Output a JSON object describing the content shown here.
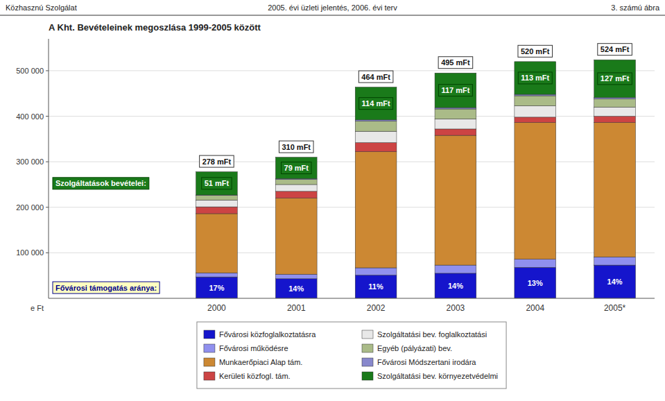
{
  "chart_data": {
    "type": "bar",
    "stacked": true,
    "title": "A Kht. Bevételeinek megoszlása 1999-2005 között",
    "header": {
      "left": "Közhasznú Szolgálat",
      "center": "2005. évi üzleti jelentés, 2006. évi terv",
      "right": "3. számú ábra"
    },
    "y_label": "e Ft",
    "categories": [
      "2000",
      "2001",
      "2002",
      "2003",
      "2004",
      "2005*"
    ],
    "series": [
      {
        "name": "Fővárosi közfoglalkoztatásra",
        "color": "#1515CC",
        "values": [
          47000,
          43000,
          51000,
          55000,
          68000,
          73000
        ]
      },
      {
        "name": "Fővárosi működésre",
        "color": "#9090EE",
        "values": [
          9000,
          10000,
          16000,
          18000,
          18000,
          18000
        ]
      },
      {
        "name": "Munkaerőpiaci Alap tám.",
        "color": "#CC8833",
        "values": [
          130000,
          167000,
          255000,
          285000,
          300000,
          295000
        ]
      },
      {
        "name": "Kerületi közfogl. tám.",
        "color": "#CC4444",
        "values": [
          15000,
          15000,
          20000,
          14000,
          12000,
          14000
        ]
      },
      {
        "name": "Szolgáltatási bev. foglalkoztatási",
        "color": "#E8E8E8",
        "values": [
          15000,
          15000,
          25000,
          22000,
          25000,
          20000
        ]
      },
      {
        "name": "Egyéb (pályázati) bev.",
        "color": "#AABB88",
        "values": [
          10000,
          11000,
          22000,
          22000,
          22000,
          18000
        ]
      },
      {
        "name": "Fővárosi Módszertani irodára",
        "color": "#8888CC",
        "values": [
          1000,
          2000,
          3000,
          3000,
          3000,
          3000
        ]
      },
      {
        "name": "Szolgáltatási bev. környezetvédelmi",
        "color": "#1A7A1A",
        "values": [
          51000,
          47000,
          72000,
          76000,
          72000,
          83000
        ]
      }
    ],
    "totals": {
      "values": [
        278000,
        310000,
        464000,
        495000,
        520000,
        524000
      ],
      "value_labels": [
        "278 mFt",
        "310 mFt",
        "464 mFt",
        "495 mFt",
        "520 mFt",
        "524 mFt"
      ]
    },
    "service_revenue": {
      "name": "Szolgáltatások bevételei:",
      "values": [
        51000,
        79000,
        114000,
        117000,
        113000,
        127000
      ],
      "value_labels": [
        "51 mFt",
        "79 mFt",
        "114 mFt",
        "117 mFt",
        "113 mFt",
        "127 mFt"
      ]
    },
    "support_share": {
      "name": "Fővárosi támogatás aránya:",
      "values": [
        17,
        14,
        11,
        14,
        13,
        14
      ],
      "value_labels": [
        "17%",
        "14%",
        "11%",
        "14%",
        "13%",
        "14%"
      ]
    },
    "ylim": [
      0,
      570000
    ],
    "yticks": [
      {
        "value": 100000,
        "label": "100 000"
      },
      {
        "value": 200000,
        "label": "200 000"
      },
      {
        "value": 300000,
        "label": "300 000"
      },
      {
        "value": 400000,
        "label": "400 000"
      },
      {
        "value": 500000,
        "label": "500 000"
      }
    ],
    "grid": true,
    "legend": "bottom"
  }
}
